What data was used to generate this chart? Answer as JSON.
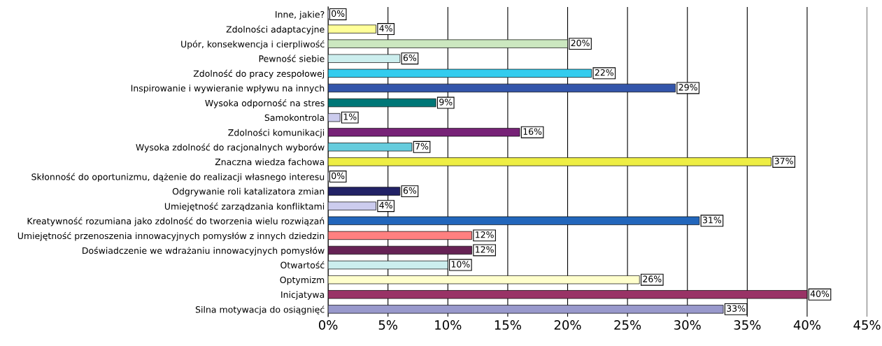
{
  "chart_data": {
    "type": "bar",
    "orientation": "horizontal",
    "categories": [
      "Inne, jakie?",
      "Zdolności adaptacyjne",
      "Upór, konsekwencja i cierpliwość",
      "Pewność siebie",
      "Zdolność do pracy zespołowej",
      "Inspirowanie i wywieranie wpływu na innych",
      "Wysoka odporność na stres",
      "Samokontrola",
      "Zdolności komunikacji",
      "Wysoka zdolność do racjonalnych wyborów",
      "Znaczna wiedza fachowa",
      "Skłonność do oportunizmu, dążenie do realizacji własnego interesu",
      "Odgrywanie roli katalizatora zmian",
      "Umiejętność zarządzania konfliktami",
      "Kreatywność rozumiana jako zdolność do tworzenia wielu rozwiązań",
      "Umiejętność przenoszenia innowacyjnych pomysłów z innych dziedzin",
      "Doświadczenie we wdrażaniu innowacyjnych pomysłów",
      "Otwartość",
      "Optymizm",
      "Inicjatywa",
      "Silna motywacja do osiągnięć"
    ],
    "values": [
      0,
      4,
      20,
      6,
      22,
      29,
      9,
      1,
      16,
      7,
      37,
      0,
      6,
      4,
      31,
      12,
      12,
      10,
      26,
      40,
      33
    ],
    "colors": [
      "#ccccee",
      "#ffff99",
      "#cce8c0",
      "#cceeee",
      "#33ccee",
      "#3355aa",
      "#007777",
      "#ccccee",
      "#772277",
      "#66ccdd",
      "#eeee44",
      "#ccccee",
      "#222266",
      "#ccccee",
      "#2266bb",
      "#ff8080",
      "#662255",
      "#cceeee",
      "#ffffcc",
      "#993366",
      "#9999cc"
    ],
    "value_labels": [
      "0%",
      "4%",
      "20%",
      "6%",
      "22%",
      "29%",
      "9%",
      "1%",
      "16%",
      "7%",
      "37%",
      "0%",
      "6%",
      "4%",
      "31%",
      "12%",
      "12%",
      "10%",
      "26%",
      "40%",
      "33%"
    ],
    "xlim": [
      0,
      45
    ],
    "xticks": [
      {
        "value": 0,
        "label": "0%"
      },
      {
        "value": 5,
        "label": "5%"
      },
      {
        "value": 10,
        "label": "10%"
      },
      {
        "value": 15,
        "label": "15%"
      },
      {
        "value": 20,
        "label": "20%"
      },
      {
        "value": 25,
        "label": "25%"
      },
      {
        "value": 30,
        "label": "30%"
      },
      {
        "value": 35,
        "label": "35%"
      },
      {
        "value": 40,
        "label": "40%"
      },
      {
        "value": 45,
        "label": "45%"
      }
    ],
    "grid": "x",
    "legend": false
  }
}
